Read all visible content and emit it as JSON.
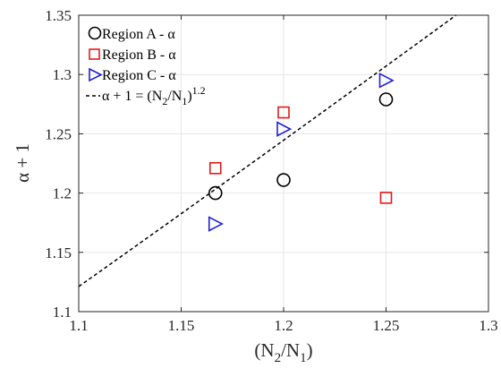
{
  "chart_data": {
    "type": "scatter",
    "title": "",
    "xlabel": "(N",
    "xlabel_sub1": "2",
    "xlabel_mid": "/N",
    "xlabel_sub2": "1",
    "xlabel_end": ")",
    "ylabel": "α + 1",
    "xlim": [
      1.1,
      1.3
    ],
    "ylim": [
      1.1,
      1.35
    ],
    "x_ticks": [
      1.1,
      1.15,
      1.2,
      1.25,
      1.3
    ],
    "x_tick_labels": [
      "1.1",
      "1.15",
      "1.2",
      "1.25",
      "1.3"
    ],
    "y_ticks": [
      1.1,
      1.15,
      1.2,
      1.25,
      1.3,
      1.35
    ],
    "y_tick_labels": [
      "1.1",
      "1.15",
      "1.2",
      "1.25",
      "1.3",
      "1.35"
    ],
    "grid": true,
    "legend_position": "top-left",
    "series": [
      {
        "name": "Region A - α",
        "marker": "circle",
        "color": "#000000",
        "points": [
          [
            1.1667,
            1.2
          ],
          [
            1.2,
            1.211
          ],
          [
            1.25,
            1.279
          ]
        ]
      },
      {
        "name": "Region B - α",
        "marker": "square",
        "color": "#e41a1c",
        "points": [
          [
            1.1667,
            1.221
          ],
          [
            1.2,
            1.268
          ],
          [
            1.25,
            1.196
          ]
        ]
      },
      {
        "name": "Region C - α",
        "marker": "triangle-right",
        "color": "#1f1fd6",
        "points": [
          [
            1.1667,
            1.174
          ],
          [
            1.2,
            1.254
          ],
          [
            1.25,
            1.295
          ]
        ]
      }
    ],
    "fit_line": {
      "legend_prefix": "α + 1 = (N",
      "legend_sub1": "2",
      "legend_mid": "/N",
      "legend_sub2": "1",
      "legend_end": ")",
      "legend_exp": "1.2",
      "exponent": 1.2,
      "style": "dashed",
      "color": "#000000"
    }
  }
}
